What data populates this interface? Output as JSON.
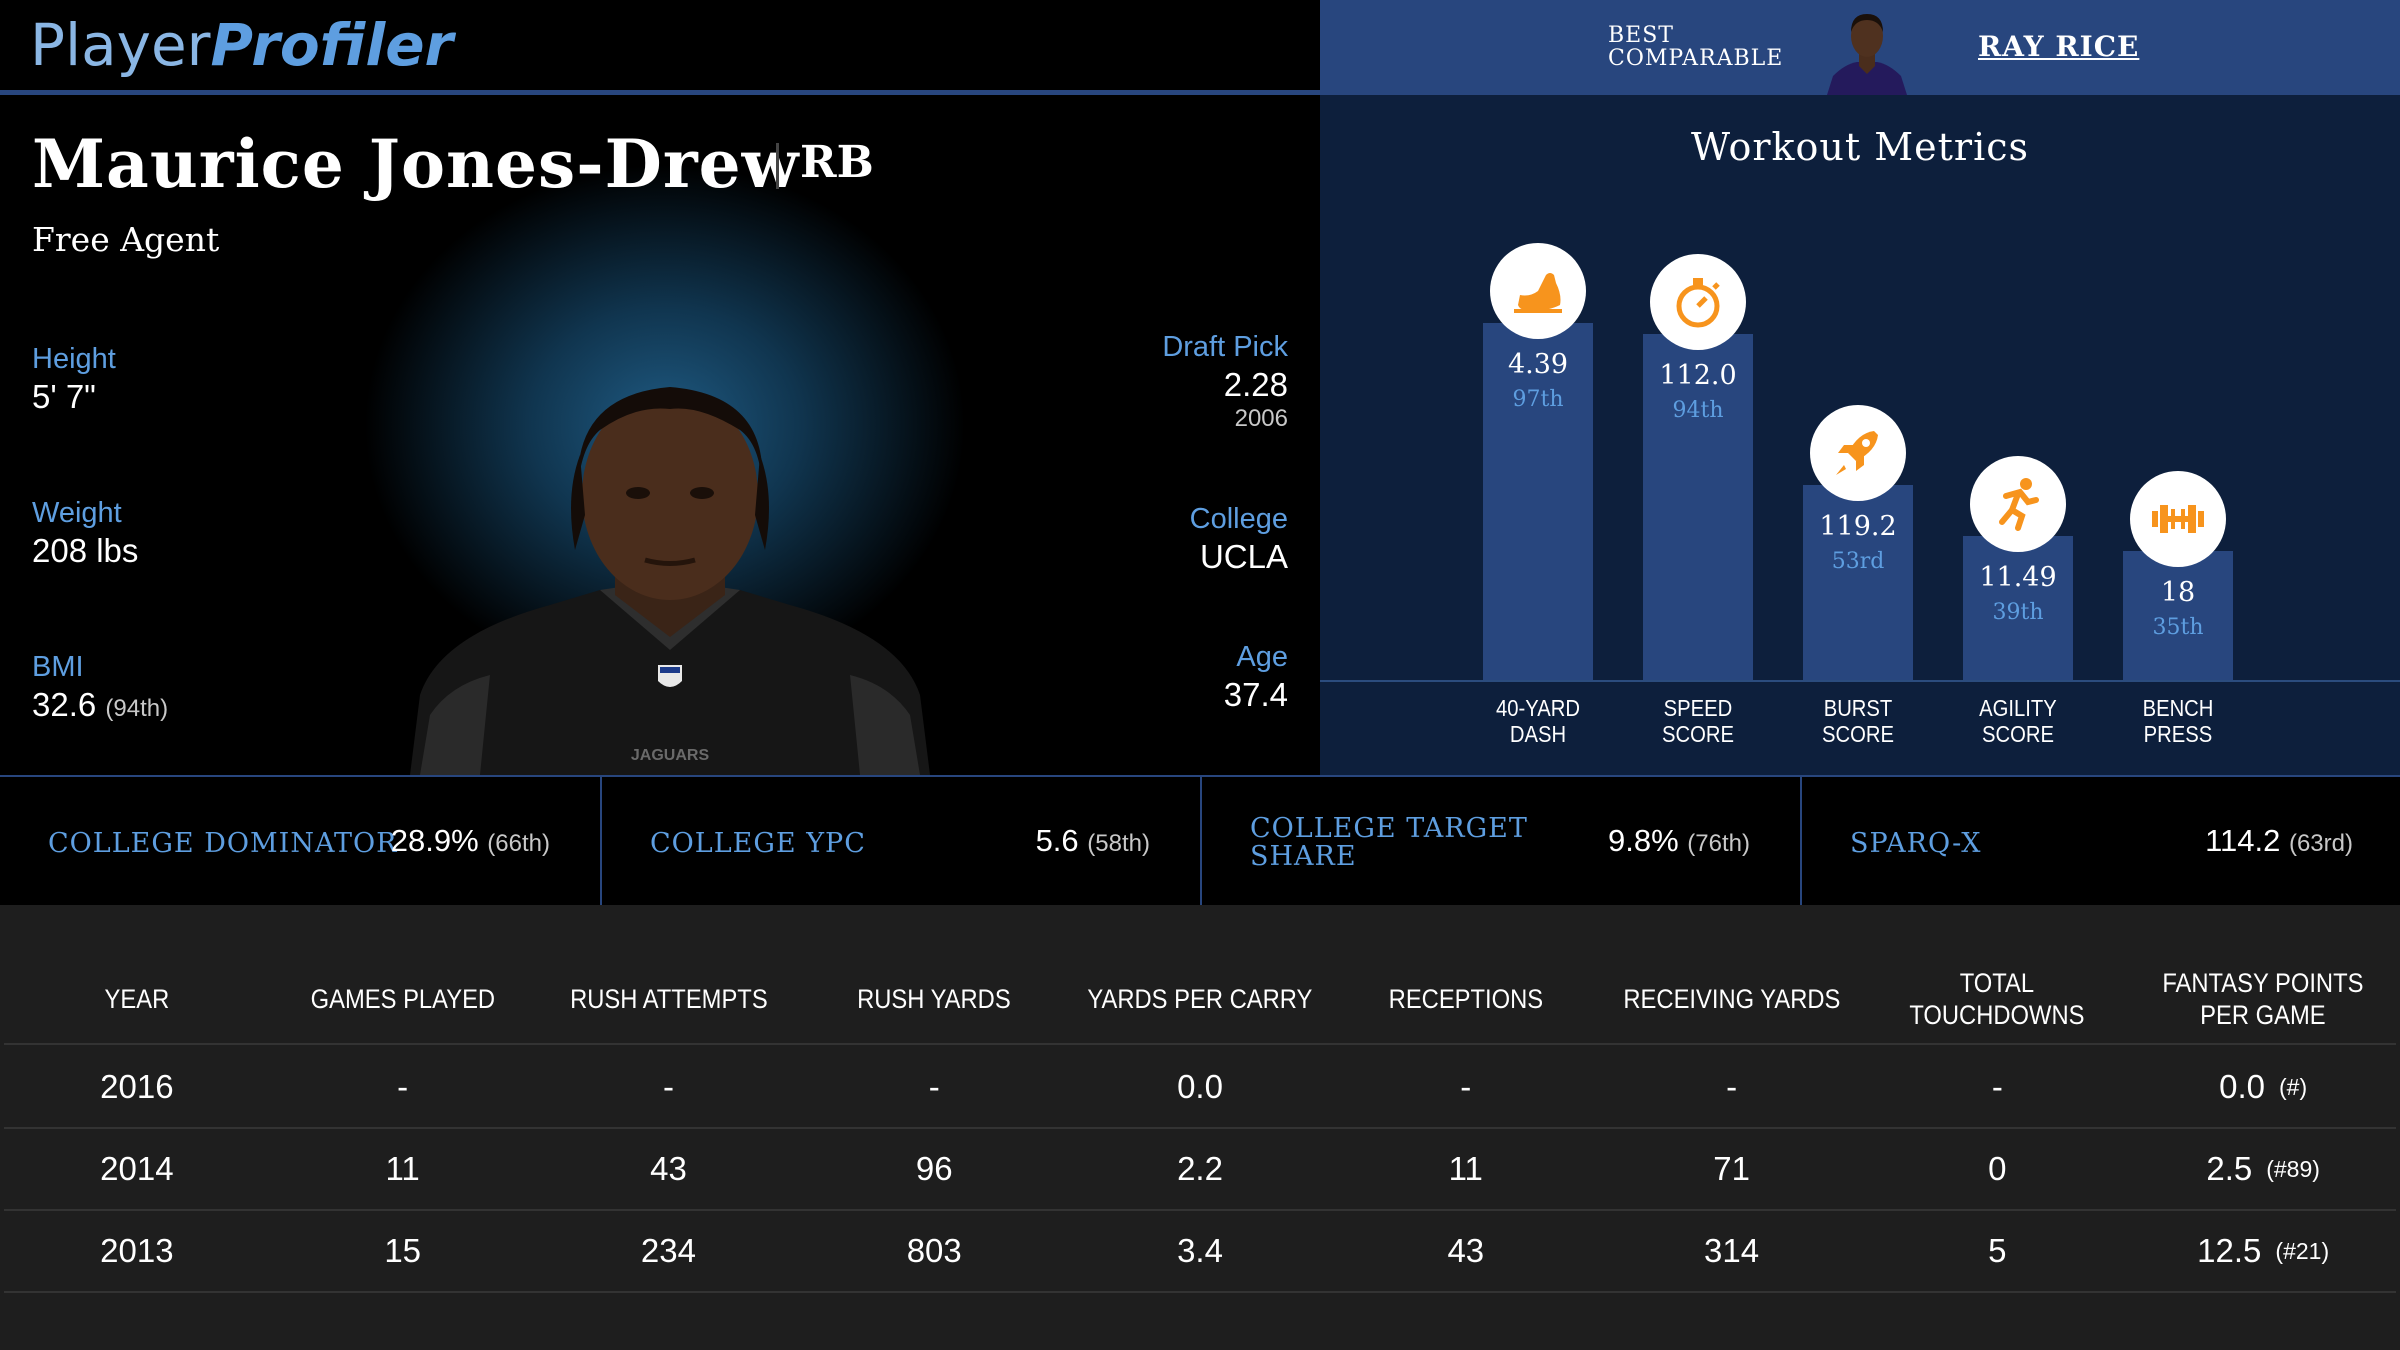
{
  "header": {
    "logo_part1": "Player",
    "logo_part2": "Profiler"
  },
  "comparable": {
    "label_line1": "BEST",
    "label_line2": "COMPARABLE",
    "name": "RAY RICE"
  },
  "player": {
    "name": "Maurice Jones-Drew",
    "position": "RB",
    "team": "Free Agent",
    "height_label": "Height",
    "height": "5' 7\"",
    "weight_label": "Weight",
    "weight": "208 lbs",
    "bmi_label": "BMI",
    "bmi": "32.6",
    "bmi_pct": "(94th)",
    "draft_label": "Draft Pick",
    "draft_pick": "2.28",
    "draft_year": "2006",
    "college_label": "College",
    "college": "UCLA",
    "age_label": "Age",
    "age": "37.4",
    "jersey_text": "JAGUARS"
  },
  "workout": {
    "title": "Workout Metrics",
    "metrics": [
      {
        "label1": "40-YARD",
        "label2": "DASH",
        "value": "4.39",
        "percentile": "97th",
        "pct": 97,
        "icon": "shoe-icon"
      },
      {
        "label1": "SPEED",
        "label2": "SCORE",
        "value": "112.0",
        "percentile": "94th",
        "pct": 94,
        "icon": "stopwatch-icon"
      },
      {
        "label1": "BURST",
        "label2": "SCORE",
        "value": "119.2",
        "percentile": "53rd",
        "pct": 53,
        "icon": "rocket-icon"
      },
      {
        "label1": "AGILITY",
        "label2": "SCORE",
        "value": "11.49",
        "percentile": "39th",
        "pct": 39,
        "icon": "runner-icon"
      },
      {
        "label1": "BENCH",
        "label2": "PRESS",
        "value": "18",
        "percentile": "35th",
        "pct": 35,
        "icon": "dumbbell-icon"
      }
    ],
    "accent_color": "#f7941d"
  },
  "college_stats": [
    {
      "label1": "COLLEGE DOMINATOR",
      "label2": "",
      "value": "28.9%",
      "pct": "(66th)"
    },
    {
      "label1": "COLLEGE YPC",
      "label2": "",
      "value": "5.6",
      "pct": "(58th)"
    },
    {
      "label1": "COLLEGE TARGET",
      "label2": "SHARE",
      "value": "9.8%",
      "pct": "(76th)"
    },
    {
      "label1": "SPARQ-X",
      "label2": "",
      "value": "114.2",
      "pct": "(63rd)"
    }
  ],
  "table": {
    "headers": [
      "YEAR",
      "GAMES PLAYED",
      "RUSH ATTEMPTS",
      "RUSH YARDS",
      "YARDS PER CARRY",
      "RECEPTIONS",
      "RECEIVING YARDS",
      "TOTAL TOUCHDOWNS",
      "FANTASY POINTS PER GAME"
    ],
    "rows": [
      {
        "cells": [
          "2016",
          "-",
          "-",
          "-",
          "0.0",
          "-",
          "-",
          "-",
          "0.0"
        ],
        "rank": "(#)"
      },
      {
        "cells": [
          "2014",
          "11",
          "43",
          "96",
          "2.2",
          "11",
          "71",
          "0",
          "2.5"
        ],
        "rank": "(#89)"
      },
      {
        "cells": [
          "2013",
          "15",
          "234",
          "803",
          "3.4",
          "43",
          "314",
          "5",
          "12.5"
        ],
        "rank": "(#21)"
      }
    ]
  }
}
